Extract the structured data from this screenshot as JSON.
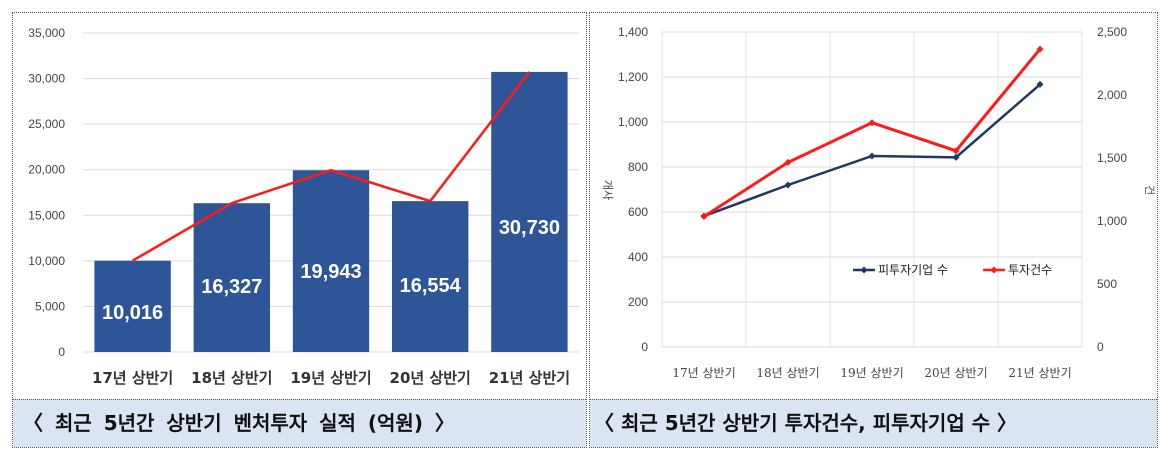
{
  "captions": {
    "left": "〈 최근 5년간 상반기 벤처투자 실적 (억원) 〉",
    "right": "〈 최근 5년간 상반기 투자건수, 피투자기업 수 〉"
  },
  "chart_data": [
    {
      "type": "bar",
      "categories": [
        "17년 상반기",
        "18년 상반기",
        "19년 상반기",
        "20년 상반기",
        "21년 상반기"
      ],
      "series": [
        {
          "values": [
            10016,
            16327,
            19943,
            16554,
            30730
          ],
          "color": "#2e5597",
          "data_labels": [
            "10,016",
            "16,327",
            "19,943",
            "16,554",
            "30,730"
          ]
        },
        {
          "type": "line",
          "values": [
            10016,
            16327,
            19943,
            16554,
            30730
          ],
          "color": "#ff1a1a"
        }
      ],
      "ylim": [
        0,
        35000
      ],
      "yticks": [
        "0",
        "5,000",
        "10,000",
        "15,000",
        "20,000",
        "25,000",
        "30,000",
        "35,000"
      ],
      "grid": true
    },
    {
      "type": "line",
      "categories": [
        "17년 상반기",
        "18년 상반기",
        "19년 상반기",
        "20년 상반기",
        "21년 상반기"
      ],
      "series": [
        {
          "name": "피투자기업 수",
          "axis": "left",
          "values": [
            582,
            720,
            849,
            843,
            1167
          ],
          "color": "#1f3864"
        },
        {
          "name": "투자건수",
          "axis": "right",
          "values": [
            1036,
            1465,
            1780,
            1557,
            2364
          ],
          "color": "#ff1a1a"
        }
      ],
      "ylabel_left": "개사",
      "ylabel_right": "건",
      "ylim_left": [
        0,
        1400
      ],
      "ylim_right": [
        0,
        2500
      ],
      "yticks_left": [
        "0",
        "200",
        "400",
        "600",
        "800",
        "1,000",
        "1,200",
        "1,400"
      ],
      "yticks_right": [
        "0",
        "500",
        "1,000",
        "1,500",
        "2,000",
        "2,500"
      ],
      "legend": "center-right",
      "grid": true
    }
  ]
}
